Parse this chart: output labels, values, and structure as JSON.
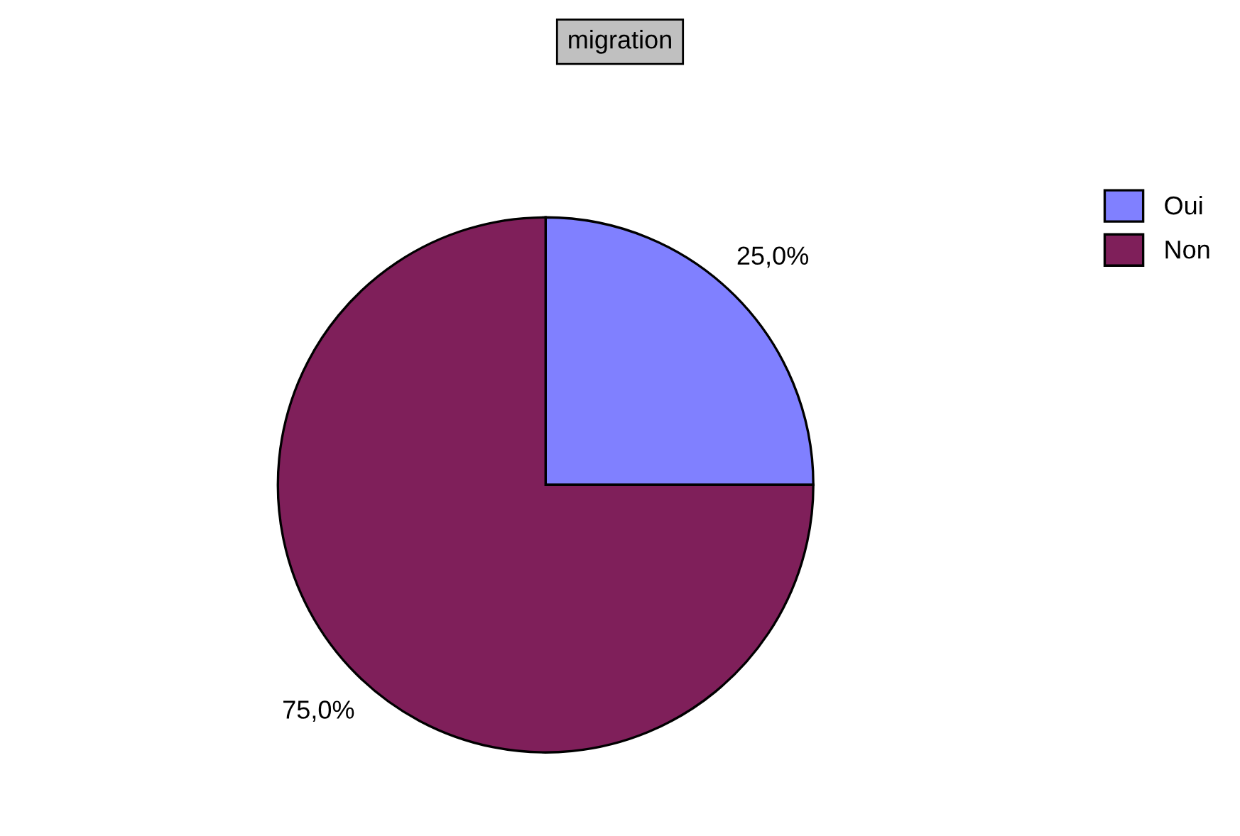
{
  "chart_data": {
    "type": "pie",
    "title": "migration",
    "categories": [
      "Oui",
      "Non"
    ],
    "values": [
      25,
      75
    ],
    "value_labels": [
      "25,0%",
      "75,0%"
    ],
    "colors": [
      "#8080ff",
      "#7f1f5a"
    ],
    "legend": "top right"
  }
}
